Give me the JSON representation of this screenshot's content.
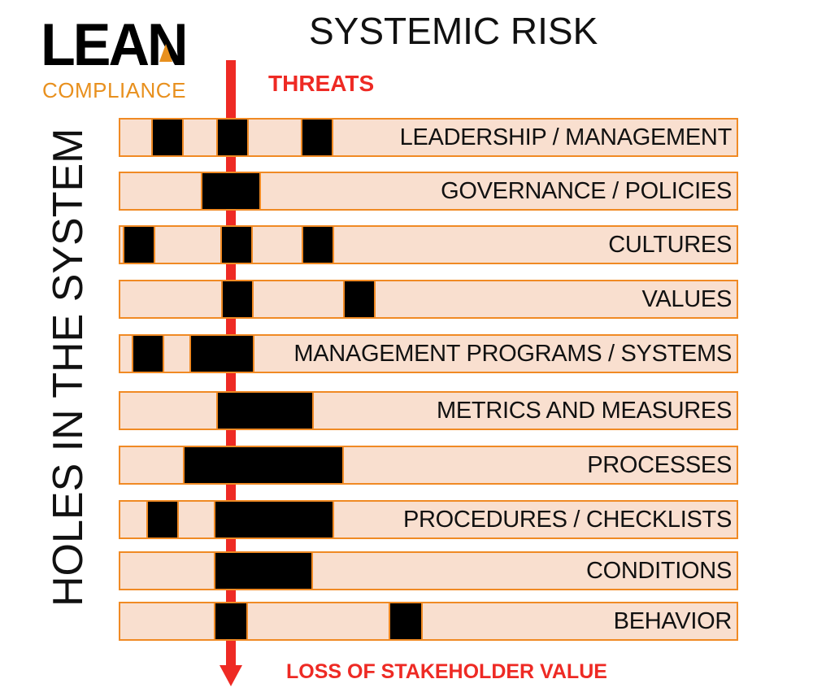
{
  "logo": {
    "word": "LEAN",
    "subtitle": "COMPLIANCE"
  },
  "title": "SYSTEMIC RISK",
  "threats_label": "THREATS",
  "outcome_label": "LOSS OF STAKEHOLDER VALUE",
  "vertical_label": "HOLES IN THE SYSTEM",
  "colors": {
    "threat": "#ee2a24",
    "layer_fill": "#f9dfcf",
    "layer_border": "#f08a24",
    "hole": "#000000",
    "logo_accent": "#e8901e"
  },
  "layers": [
    {
      "label": "LEADERSHIP / MANAGEMENT"
    },
    {
      "label": "GOVERNANCE / POLICIES"
    },
    {
      "label": "CULTURES"
    },
    {
      "label": "VALUES"
    },
    {
      "label": "MANAGEMENT PROGRAMS / SYSTEMS"
    },
    {
      "label": "METRICS AND MEASURES"
    },
    {
      "label": "PROCESSES"
    },
    {
      "label": "PROCEDURES / CHECKLISTS"
    },
    {
      "label": "CONDITIONS"
    },
    {
      "label": "BEHAVIOR"
    }
  ]
}
